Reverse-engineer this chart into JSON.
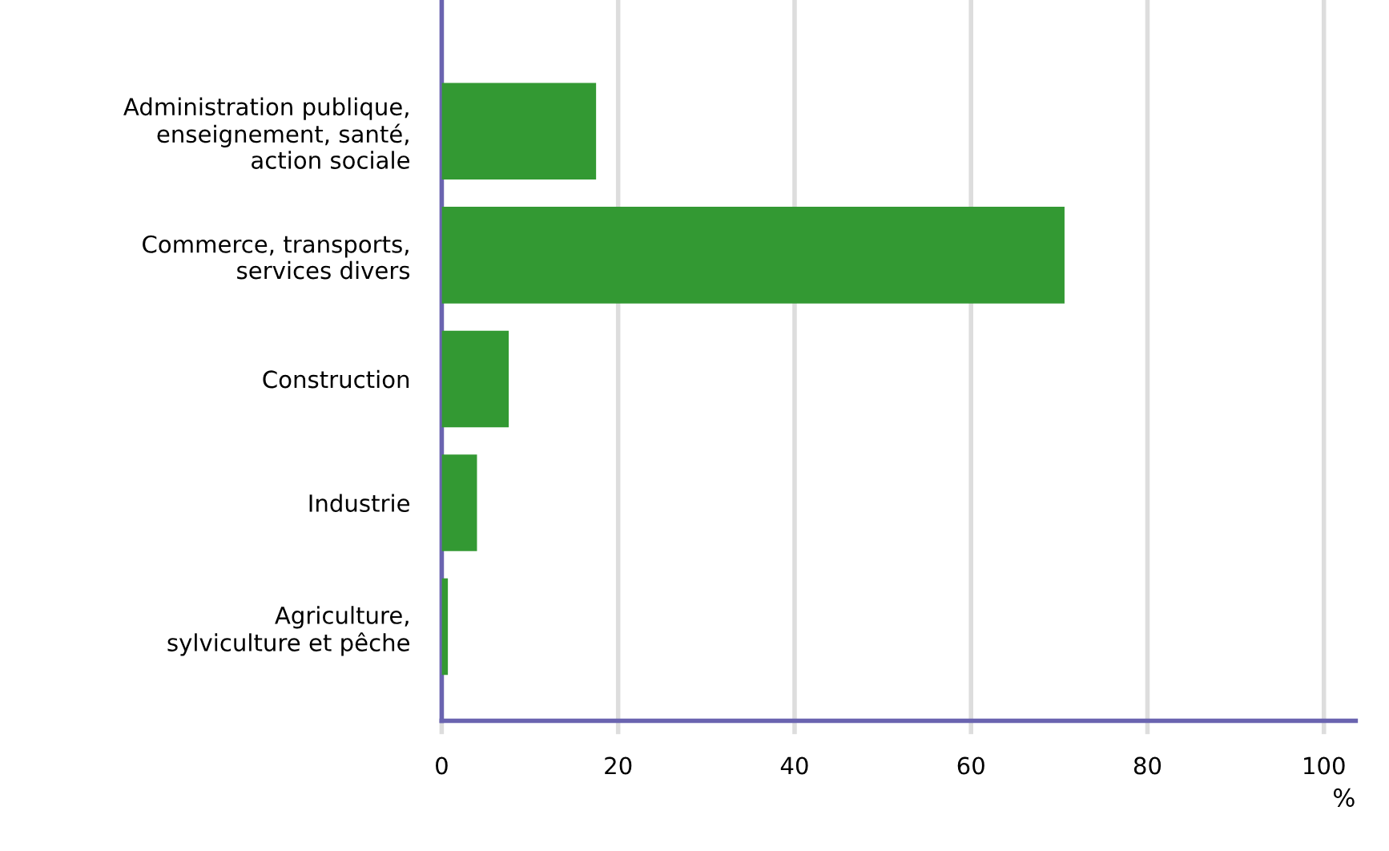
{
  "chart_data": {
    "type": "bar",
    "orientation": "horizontal",
    "categories": [
      "Administration publique,\nenseignement, santé,\naction sociale",
      "Commerce, transports,\nservices divers",
      "Construction",
      "Industrie",
      "Agriculture,\nsylviculture et pêche"
    ],
    "values": [
      17.5,
      70.6,
      7.6,
      4.0,
      0.7
    ],
    "color": "#339933",
    "xlabel": "%",
    "xlim": [
      0,
      103.6
    ],
    "xticks": [
      0,
      20,
      40,
      60,
      80,
      100
    ],
    "grid": "x"
  }
}
